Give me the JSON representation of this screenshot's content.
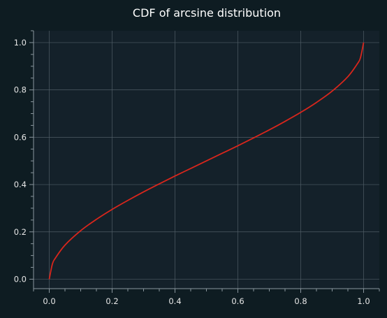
{
  "chart_data": {
    "type": "line",
    "title": "CDF of arcsine distribution",
    "xlabel": "",
    "ylabel": "",
    "xlim": [
      -0.05,
      1.05
    ],
    "ylim": [
      -0.04,
      1.05
    ],
    "xticks": [
      "0.0",
      "0.2",
      "0.4",
      "0.6",
      "0.8",
      "1.0"
    ],
    "yticks": [
      "0.0",
      "0.2",
      "0.4",
      "0.6",
      "0.8",
      "1.0"
    ],
    "grid": true,
    "legend": "none",
    "colors": {
      "background": "#0e1c22",
      "plot_area": "#14212a",
      "grid": "#4f5d66",
      "axis": "#8a969e",
      "line": "#d9261c"
    },
    "series": [
      {
        "x": [
          0.0,
          0.01,
          0.02,
          0.05,
          0.1,
          0.15,
          0.2,
          0.25,
          0.3,
          0.35,
          0.4,
          0.45,
          0.5,
          0.55,
          0.6,
          0.65,
          0.7,
          0.75,
          0.8,
          0.85,
          0.9,
          0.95,
          0.98,
          0.99,
          1.0
        ],
        "y": [
          0.0,
          0.064,
          0.09,
          0.144,
          0.205,
          0.253,
          0.295,
          0.333,
          0.369,
          0.403,
          0.436,
          0.468,
          0.5,
          0.532,
          0.564,
          0.597,
          0.631,
          0.667,
          0.705,
          0.747,
          0.795,
          0.856,
          0.91,
          0.936,
          1.0
        ]
      }
    ]
  }
}
